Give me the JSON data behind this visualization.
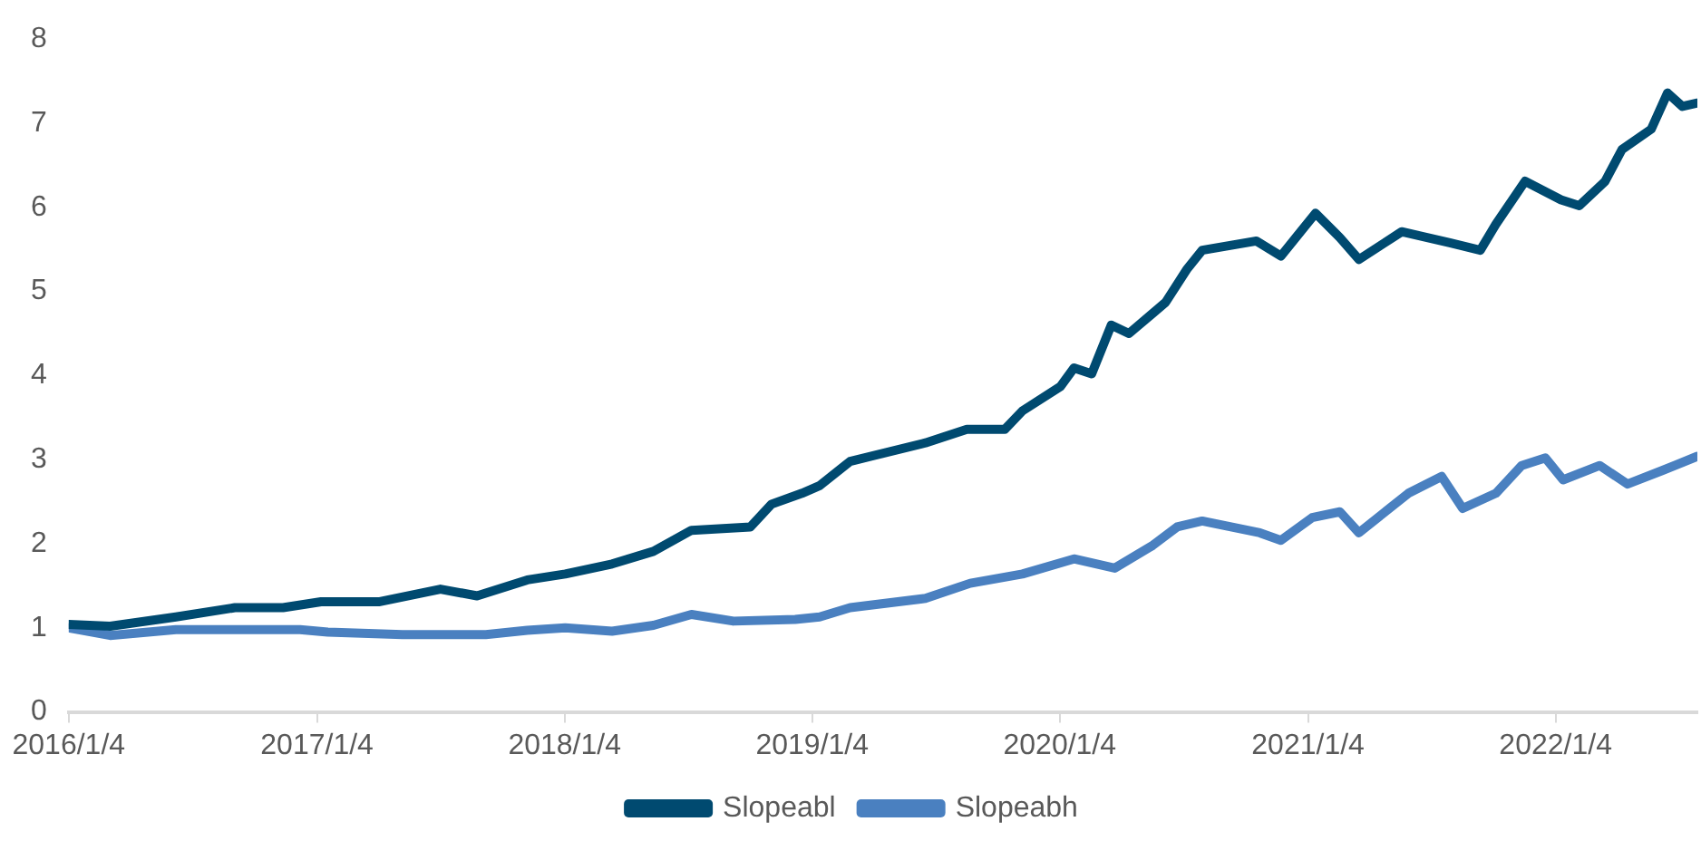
{
  "chart_data": {
    "type": "line",
    "xlim": [
      "2016-01-04",
      "2022-08-01"
    ],
    "xticks": [
      {
        "value": "2016-01-04",
        "label": "2016/1/4"
      },
      {
        "value": "2017-01-04",
        "label": "2017/1/4"
      },
      {
        "value": "2018-01-04",
        "label": "2018/1/4"
      },
      {
        "value": "2019-01-04",
        "label": "2019/1/4"
      },
      {
        "value": "2020-01-04",
        "label": "2020/1/4"
      },
      {
        "value": "2021-01-04",
        "label": "2021/1/4"
      },
      {
        "value": "2022-01-04",
        "label": "2022/1/4"
      }
    ],
    "ylim": [
      0,
      8
    ],
    "yticks": [
      0,
      1,
      2,
      3,
      4,
      5,
      6,
      7,
      8
    ],
    "grid": false,
    "legend": "bottom",
    "marker": "none",
    "line_style": "solid",
    "series": [
      {
        "name": "Slopeabl",
        "color": "#004a70",
        "x": [
          "2016-01-04",
          "2016-03-05",
          "2016-06-10",
          "2016-09-05",
          "2016-11-15",
          "2017-01-10",
          "2017-04-05",
          "2017-07-05",
          "2017-08-28",
          "2017-11-10",
          "2018-01-05",
          "2018-03-15",
          "2018-05-15",
          "2018-07-10",
          "2018-10-05",
          "2018-11-05",
          "2018-12-20",
          "2019-01-15",
          "2019-03-01",
          "2019-06-20",
          "2019-08-20",
          "2019-10-15",
          "2019-11-10",
          "2020-01-05",
          "2020-01-25",
          "2020-02-20",
          "2020-03-20",
          "2020-04-15",
          "2020-06-08",
          "2020-07-10",
          "2020-08-01",
          "2020-10-20",
          "2020-11-25",
          "2021-01-15",
          "2021-02-20",
          "2021-03-20",
          "2021-05-22",
          "2021-08-01",
          "2021-09-15",
          "2021-10-08",
          "2021-11-20",
          "2022-01-12",
          "2022-02-08",
          "2022-03-18",
          "2022-04-12",
          "2022-05-25",
          "2022-06-18",
          "2022-07-10",
          "2022-08-01"
        ],
        "values": [
          1.04,
          1.02,
          1.13,
          1.24,
          1.24,
          1.31,
          1.31,
          1.46,
          1.38,
          1.57,
          1.64,
          1.76,
          1.91,
          2.16,
          2.2,
          2.47,
          2.6,
          2.69,
          2.98,
          3.2,
          3.36,
          3.36,
          3.58,
          3.87,
          4.09,
          4.02,
          4.6,
          4.5,
          4.87,
          5.27,
          5.49,
          5.6,
          5.42,
          5.93,
          5.64,
          5.38,
          5.71,
          5.58,
          5.49,
          5.8,
          6.31,
          6.09,
          6.02,
          6.31,
          6.69,
          6.93,
          7.36,
          7.2,
          7.24
        ]
      },
      {
        "name": "Slopeabh",
        "color": "#4a80c0",
        "x": [
          "2016-01-04",
          "2016-03-05",
          "2016-06-10",
          "2016-12-10",
          "2017-01-20",
          "2017-05-10",
          "2017-09-10",
          "2017-11-10",
          "2018-01-05",
          "2018-03-15",
          "2018-05-15",
          "2018-07-10",
          "2018-09-10",
          "2018-12-10",
          "2019-01-15",
          "2019-03-01",
          "2019-06-20",
          "2019-08-25",
          "2019-11-10",
          "2020-01-25",
          "2020-03-25",
          "2020-05-20",
          "2020-06-25",
          "2020-08-01",
          "2020-10-25",
          "2020-11-25",
          "2021-01-10",
          "2021-02-20",
          "2021-03-20",
          "2021-06-01",
          "2021-07-20",
          "2021-08-20",
          "2021-10-08",
          "2021-11-15",
          "2021-12-20",
          "2022-01-15",
          "2022-03-10",
          "2022-04-20",
          "2022-06-10",
          "2022-08-01"
        ],
        "values": [
          1.0,
          0.91,
          0.98,
          0.98,
          0.95,
          0.92,
          0.92,
          0.97,
          1.0,
          0.96,
          1.03,
          1.16,
          1.08,
          1.1,
          1.13,
          1.24,
          1.35,
          1.53,
          1.64,
          1.82,
          1.71,
          1.98,
          2.2,
          2.27,
          2.13,
          2.04,
          2.31,
          2.38,
          2.13,
          2.6,
          2.8,
          2.42,
          2.6,
          2.93,
          3.02,
          2.76,
          2.93,
          2.71,
          2.87,
          3.04
        ]
      }
    ]
  }
}
